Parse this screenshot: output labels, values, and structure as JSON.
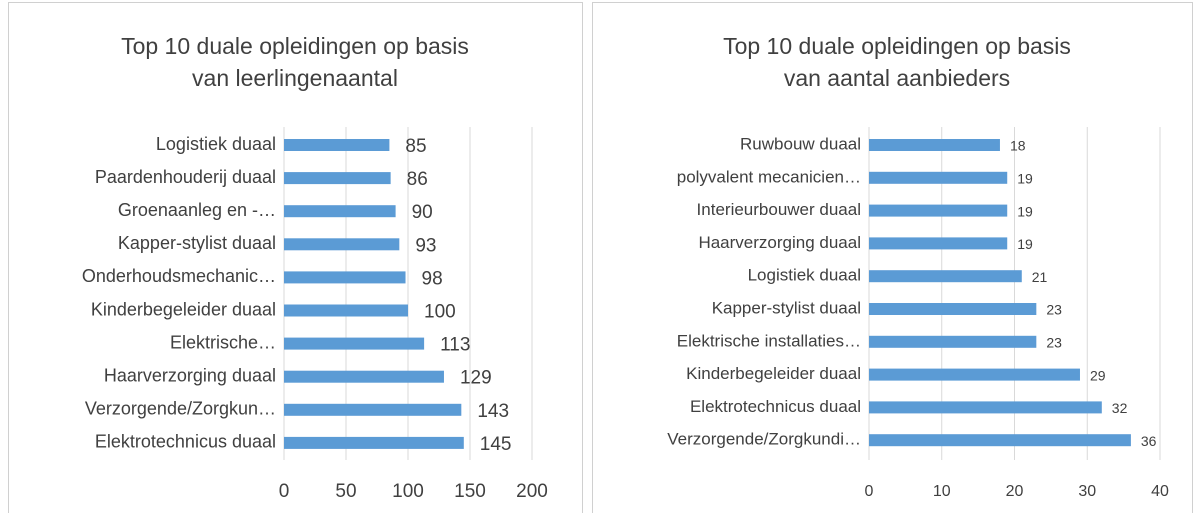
{
  "chart_data": [
    {
      "type": "bar",
      "orientation": "horizontal",
      "title": [
        "Top 10 duale opleidingen op basis",
        "van leerlingenaantal"
      ],
      "categories": [
        "Logistiek duaal",
        "Paardenhouderij duaal",
        "Groenaanleg en -…",
        "Kapper-stylist duaal",
        "Onderhoudsmechanic…",
        "Kinderbegeleider duaal",
        "Elektrische…",
        "Haarverzorging duaal",
        "Verzorgende/Zorgkun…",
        "Elektrotechnicus duaal"
      ],
      "values": [
        85,
        86,
        90,
        93,
        98,
        100,
        113,
        129,
        143,
        145
      ],
      "color": "#5b9bd5",
      "xlim": [
        0,
        200
      ],
      "xticks": [
        0,
        50,
        100,
        150,
        200
      ],
      "grid": true
    },
    {
      "type": "bar",
      "orientation": "horizontal",
      "title": [
        "Top 10 duale opleidingen op basis",
        "van aantal aanbieders"
      ],
      "categories": [
        "Ruwbouw duaal",
        "polyvalent mecanicien…",
        "Interieurbouwer duaal",
        "Haarverzorging duaal",
        "Logistiek duaal",
        "Kapper-stylist duaal",
        "Elektrische installaties…",
        "Kinderbegeleider duaal",
        "Elektrotechnicus duaal",
        "Verzorgende/Zorgkundi…"
      ],
      "values": [
        18,
        19,
        19,
        19,
        21,
        23,
        23,
        29,
        32,
        36
      ],
      "color": "#5b9bd5",
      "xlim": [
        0,
        40
      ],
      "xticks": [
        0,
        10,
        20,
        30,
        40
      ],
      "grid": true
    }
  ]
}
